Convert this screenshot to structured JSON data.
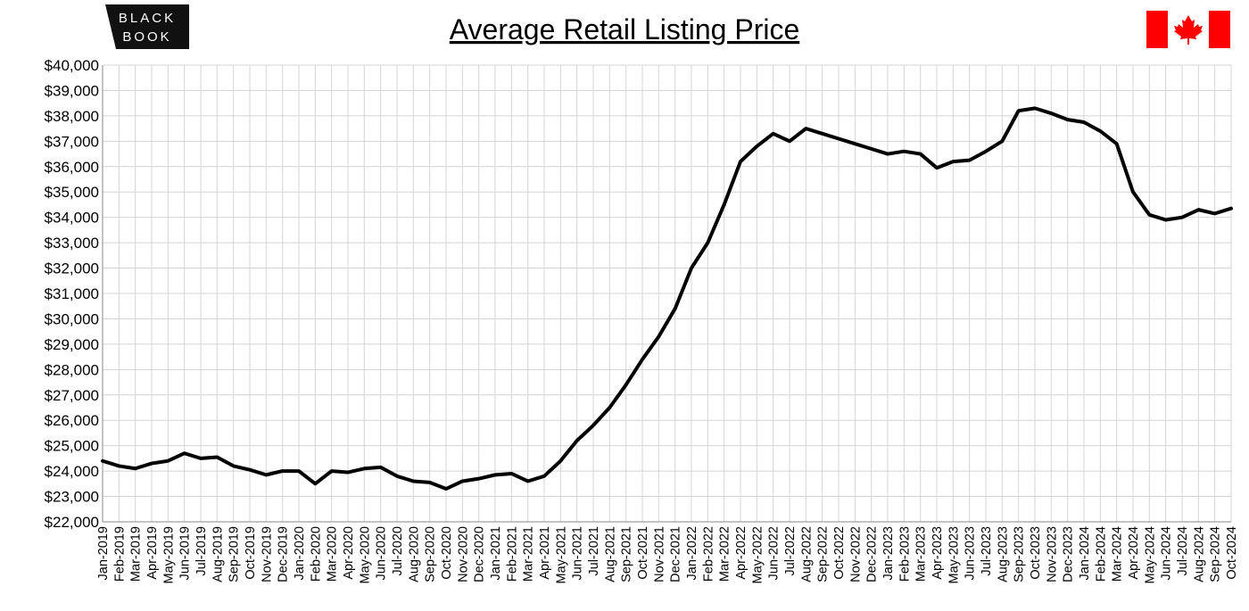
{
  "logo": [
    "BLACK",
    "BOOK"
  ],
  "chart_data": {
    "type": "line",
    "title": "Average Retail Listing Price",
    "color": "#000000",
    "grid": true,
    "categories": [
      "Jan-2019",
      "Feb-2019",
      "Mar-2019",
      "Apr-2019",
      "May-2019",
      "Jun-2019",
      "Jul-2019",
      "Aug-2019",
      "Sep-2019",
      "Oct-2019",
      "Nov-2019",
      "Dec-2019",
      "Jan-2020",
      "Feb-2020",
      "Mar-2020",
      "Apr-2020",
      "May-2020",
      "Jun-2020",
      "Jul-2020",
      "Aug-2020",
      "Sep-2020",
      "Oct-2020",
      "Nov-2020",
      "Dec-2020",
      "Jan-2021",
      "Feb-2021",
      "Mar-2021",
      "Apr-2021",
      "May-2021",
      "Jun-2021",
      "Jul-2021",
      "Aug-2021",
      "Sep-2021",
      "Oct-2021",
      "Nov-2021",
      "Dec-2021",
      "Jan-2022",
      "Feb-2022",
      "Mar-2022",
      "Apr-2022",
      "May-2022",
      "Jun-2022",
      "Jul-2022",
      "Aug-2022",
      "Sep-2022",
      "Oct-2022",
      "Nov-2022",
      "Dec-2022",
      "Jan-2023",
      "Feb-2023",
      "Mar-2023",
      "Apr-2023",
      "May-2023",
      "Jun-2023",
      "Jul-2023",
      "Aug-2023",
      "Sep-2023",
      "Oct-2023",
      "Nov-2023",
      "Dec-2023",
      "Jan-2024",
      "Feb-2024",
      "Mar-2024",
      "Apr-2024",
      "May-2024",
      "Jun-2024",
      "Jul-2024",
      "Aug-2024",
      "Sep-2024",
      "Oct-2024"
    ],
    "values": [
      24400,
      24200,
      24100,
      24300,
      24400,
      24700,
      24500,
      24550,
      24200,
      24050,
      23850,
      24000,
      24000,
      23500,
      24000,
      23950,
      24100,
      24150,
      23800,
      23600,
      23550,
      23300,
      23600,
      23700,
      23850,
      23900,
      23600,
      23800,
      24400,
      25200,
      25800,
      26500,
      27400,
      28400,
      29300,
      30400,
      32000,
      33000,
      34500,
      36200,
      36800,
      37300,
      37000,
      37500,
      37300,
      37100,
      36900,
      36700,
      36500,
      36600,
      36500,
      35950,
      36200,
      36250,
      36600,
      37000,
      38200,
      38300,
      38100,
      37850,
      37750,
      37400,
      36900,
      35000,
      34100,
      33900,
      34000,
      34300,
      34150,
      34350
    ],
    "ylim": [
      22000,
      40000
    ],
    "yticks": [
      {
        "value": 22000,
        "label": "$22,000"
      },
      {
        "value": 23000,
        "label": "$23,000"
      },
      {
        "value": 24000,
        "label": "$24,000"
      },
      {
        "value": 25000,
        "label": "$25,000"
      },
      {
        "value": 26000,
        "label": "$26,000"
      },
      {
        "value": 27000,
        "label": "$27,000"
      },
      {
        "value": 28000,
        "label": "$28,000"
      },
      {
        "value": 29000,
        "label": "$29,000"
      },
      {
        "value": 30000,
        "label": "$30,000"
      },
      {
        "value": 31000,
        "label": "$31,000"
      },
      {
        "value": 32000,
        "label": "$32,000"
      },
      {
        "value": 33000,
        "label": "$33,000"
      },
      {
        "value": 34000,
        "label": "$34,000"
      },
      {
        "value": 35000,
        "label": "$35,000"
      },
      {
        "value": 36000,
        "label": "$36,000"
      },
      {
        "value": 37000,
        "label": "$37,000"
      },
      {
        "value": 38000,
        "label": "$38,000"
      },
      {
        "value": 39000,
        "label": "$39,000"
      },
      {
        "value": 40000,
        "label": "$40,000"
      }
    ]
  }
}
